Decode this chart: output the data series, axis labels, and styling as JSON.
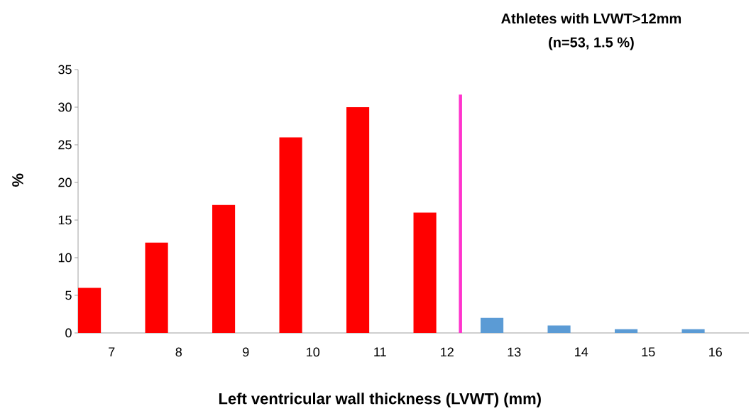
{
  "chart_data": {
    "type": "bar",
    "title": "Athletes with LVWT>12mm",
    "subtitle": "(n=53, 1.5 %)",
    "xlabel": "Left ventricular wall thickness (LVWT) (mm)",
    "ylabel": "%",
    "categories": [
      "7",
      "8",
      "9",
      "10",
      "11",
      "12",
      "13",
      "14",
      "15",
      "16"
    ],
    "values": [
      6,
      12,
      17,
      26,
      30,
      16,
      2,
      1,
      0.5,
      0.5
    ],
    "colors": [
      "#ff0000",
      "#ff0000",
      "#ff0000",
      "#ff0000",
      "#ff0000",
      "#ff0000",
      "#5b9bd5",
      "#5b9bd5",
      "#5b9bd5",
      "#5b9bd5"
    ],
    "ylim": [
      0,
      35
    ],
    "yticks": [
      0,
      5,
      10,
      15,
      20,
      25,
      30,
      35
    ],
    "ref_lines": [
      {
        "axis": "x",
        "value": "12",
        "color": "#ff33cc"
      }
    ],
    "grid": false
  }
}
